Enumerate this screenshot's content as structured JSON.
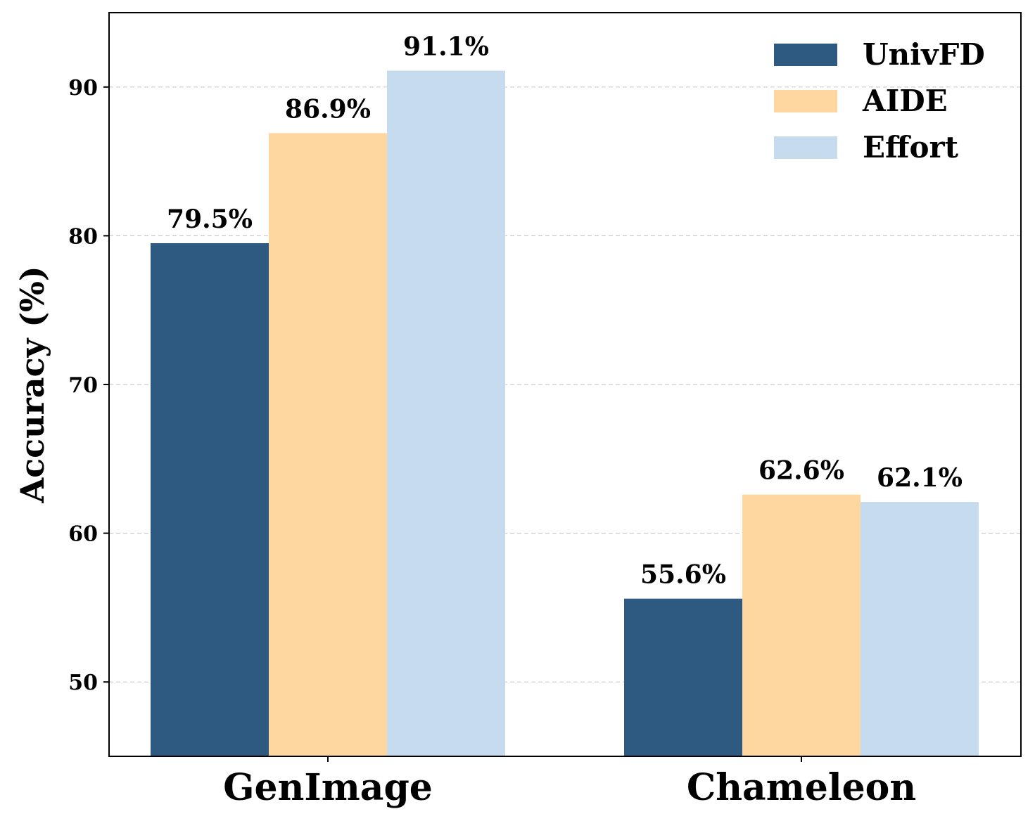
{
  "chart_data": {
    "type": "bar",
    "categories": [
      "GenImage",
      "Chameleon"
    ],
    "series": [
      {
        "name": "UnivFD",
        "values": [
          79.5,
          55.6
        ],
        "labels": [
          "79.5%",
          "55.6%"
        ],
        "color": "#2e5981"
      },
      {
        "name": "AIDE",
        "values": [
          86.9,
          62.6
        ],
        "labels": [
          "86.9%",
          "62.6%"
        ],
        "color": "#fdd79f"
      },
      {
        "name": "Effort",
        "values": [
          91.1,
          62.1
        ],
        "labels": [
          "91.1%",
          "62.1%"
        ],
        "color": "#c6dbee"
      }
    ],
    "ylabel": "Accuracy (%)",
    "xlabel": "",
    "ylim": [
      45,
      95
    ],
    "yticks": [
      50,
      60,
      70,
      80,
      90
    ],
    "grid": "horizontal dashed",
    "legend_position": "top-right"
  }
}
